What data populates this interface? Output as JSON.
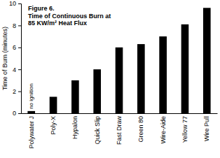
{
  "chart_data": {
    "type": "bar",
    "title": "Figure 6.",
    "subtitle": "Time of Continuous Burn at 85 KW/m² Heat Flux",
    "y_label": "Time of Burn (minutes)",
    "categories": [
      "Polywater J",
      "Poly-X",
      "Hypalon",
      "Quick Slip",
      "Fast Draw",
      "Green 80",
      "Wire-Aide",
      "Yellow 77",
      "Wire Pull"
    ],
    "values": [
      0.2,
      1.5,
      3,
      4,
      6,
      6.3,
      7,
      8.1,
      9.6
    ],
    "color": "#000000",
    "ylim": [
      0,
      10
    ],
    "yticks": [
      0,
      2,
      4,
      6,
      8,
      10
    ],
    "grid": false,
    "annotations": [
      {
        "text": "no ignition",
        "x": "Polywater J"
      }
    ]
  }
}
